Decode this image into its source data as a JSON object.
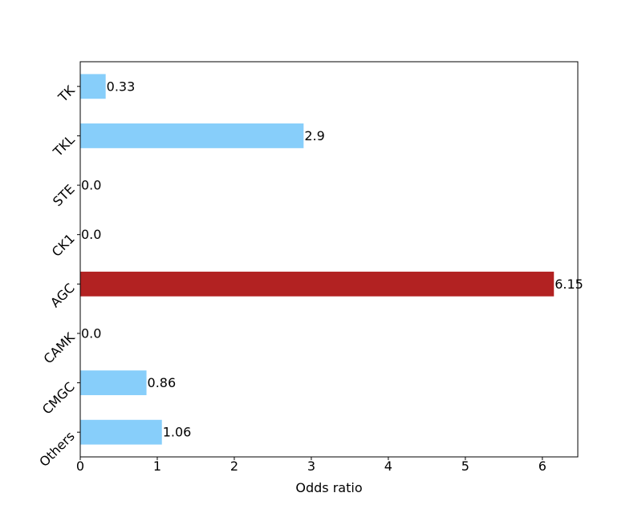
{
  "chart_data": {
    "type": "bar",
    "orientation": "horizontal",
    "categories": [
      "TK",
      "TKL",
      "STE",
      "CK1",
      "AGC",
      "CAMK",
      "CMGC",
      "Others"
    ],
    "values": [
      0.33,
      2.9,
      0.0,
      0.0,
      6.15,
      0.0,
      0.86,
      1.06
    ],
    "value_labels": [
      "0.33",
      "2.9",
      "0.0",
      "0.0",
      "6.15",
      "0.0",
      "0.86",
      "1.06"
    ],
    "highlight_category": "AGC",
    "colors": {
      "default": "#87cefa",
      "highlight": "#b22222"
    },
    "xlabel": "Odds ratio",
    "ylabel": "",
    "title": "",
    "xlim": [
      0,
      6.46
    ],
    "xticks": [
      0,
      1,
      2,
      3,
      4,
      5,
      6
    ],
    "grid": false,
    "legend": "none"
  }
}
